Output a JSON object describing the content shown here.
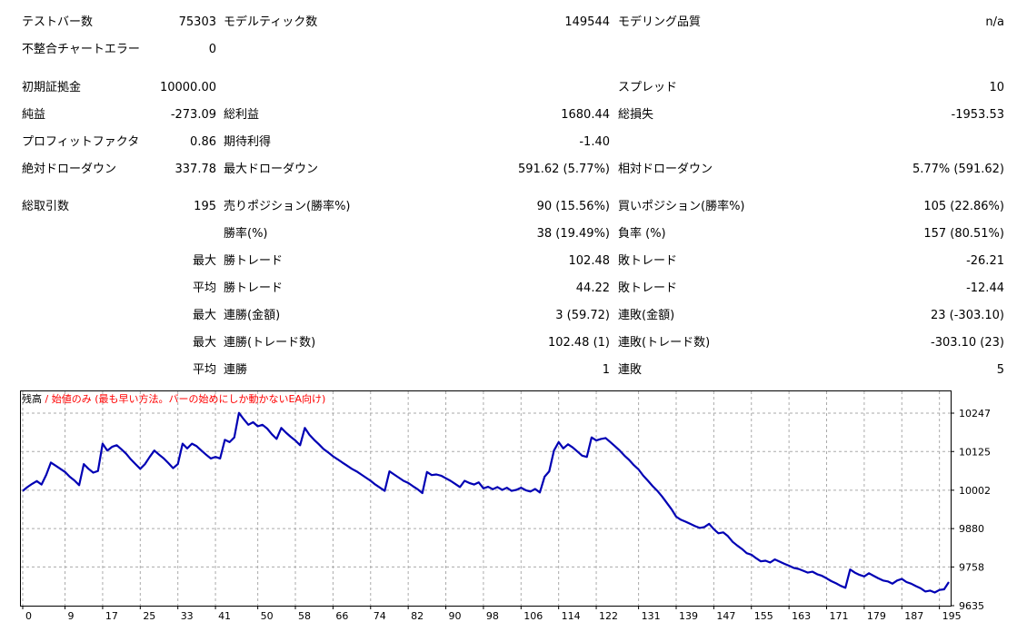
{
  "report": {
    "bars_tested_label": "テストバー数",
    "bars_tested": "75303",
    "ticks_modelled_label": "モデルティック数",
    "ticks_modelled": "149544",
    "modelling_quality_label": "モデリング品質",
    "modelling_quality": "n/a",
    "mismatched_errors_label": "不整合チャートエラー",
    "mismatched_errors": "0",
    "initial_deposit_label": "初期証拠金",
    "initial_deposit": "10000.00",
    "spread_label": "スプレッド",
    "spread": "10",
    "net_profit_label": "純益",
    "net_profit": "-273.09",
    "gross_profit_label": "総利益",
    "gross_profit": "1680.44",
    "gross_loss_label": "総損失",
    "gross_loss": "-1953.53",
    "profit_factor_label": "プロフィットファクタ",
    "profit_factor": "0.86",
    "expected_payoff_label": "期待利得",
    "expected_payoff": "-1.40",
    "abs_drawdown_label": "絶対ドローダウン",
    "abs_drawdown": "337.78",
    "max_drawdown_label": "最大ドローダウン",
    "max_drawdown": "591.62 (5.77%)",
    "rel_drawdown_label": "相対ドローダウン",
    "rel_drawdown": "5.77% (591.62)",
    "total_trades_label": "総取引数",
    "total_trades": "195",
    "short_positions_label": "売りポジション(勝率%)",
    "short_positions": "90 (15.56%)",
    "long_positions_label": "買いポジション(勝率%)",
    "long_positions": "105 (22.86%)",
    "win_rate_label": "勝率(%)",
    "win_rate": "38 (19.49%)",
    "loss_rate_label": "負率 (%)",
    "loss_rate": "157 (80.51%)",
    "max_label_1": "最大",
    "largest_win_label": "勝トレード",
    "largest_win": "102.48",
    "largest_loss_label": "敗トレード",
    "largest_loss": "-26.21",
    "avg_label_1": "平均",
    "avg_win_label": "勝トレード",
    "avg_win": "44.22",
    "avg_loss_label": "敗トレード",
    "avg_loss": "-12.44",
    "max_label_2": "最大",
    "max_consec_wins_label": "連勝(金額)",
    "max_consec_wins": "3 (59.72)",
    "max_consec_losses_label": "連敗(金額)",
    "max_consec_losses": "23 (-303.10)",
    "max_label_3": "最大",
    "max_consec_profit_label": "連勝(トレード数)",
    "max_consec_profit": "102.48 (1)",
    "max_consec_loss_label": "連敗(トレード数)",
    "max_consec_loss": "-303.10 (23)",
    "avg_label_2": "平均",
    "avg_consec_wins_label": "連勝",
    "avg_consec_wins": "1",
    "avg_consec_losses_label": "連敗",
    "avg_consec_losses": "5"
  },
  "chart_header": {
    "series_label": "残高",
    "separator": " / ",
    "note": "始値のみ (最も早い方法。バーの始めにしか動かないEA向け)"
  },
  "chart_data": {
    "type": "line",
    "series": [
      {
        "name": "残高",
        "color": "#0000b4"
      }
    ],
    "x_ticks": [
      "0",
      "9",
      "17",
      "25",
      "33",
      "41",
      "50",
      "58",
      "66",
      "74",
      "82",
      "90",
      "98",
      "106",
      "114",
      "122",
      "131",
      "139",
      "147",
      "155",
      "163",
      "171",
      "179",
      "187",
      "195"
    ],
    "y_ticks": [
      "10247",
      "10125",
      "10002",
      "9880",
      "9758",
      "9635"
    ],
    "ylim": [
      9635,
      10247
    ],
    "xlim": [
      0,
      197
    ],
    "grid": true,
    "points": [
      [
        0,
        10000
      ],
      [
        1,
        10012
      ],
      [
        2,
        10022
      ],
      [
        3,
        10031
      ],
      [
        4,
        10020
      ],
      [
        5,
        10051
      ],
      [
        6,
        10090
      ],
      [
        7,
        10080
      ],
      [
        8,
        10070
      ],
      [
        9,
        10060
      ],
      [
        10,
        10045
      ],
      [
        11,
        10033
      ],
      [
        12,
        10018
      ],
      [
        13,
        10085
      ],
      [
        14,
        10070
      ],
      [
        15,
        10058
      ],
      [
        16,
        10063
      ],
      [
        17,
        10150
      ],
      [
        18,
        10128
      ],
      [
        19,
        10140
      ],
      [
        20,
        10145
      ],
      [
        21,
        10132
      ],
      [
        22,
        10118
      ],
      [
        23,
        10100
      ],
      [
        24,
        10085
      ],
      [
        25,
        10070
      ],
      [
        26,
        10085
      ],
      [
        27,
        10108
      ],
      [
        28,
        10128
      ],
      [
        29,
        10115
      ],
      [
        30,
        10103
      ],
      [
        31,
        10088
      ],
      [
        32,
        10072
      ],
      [
        33,
        10085
      ],
      [
        34,
        10150
      ],
      [
        35,
        10135
      ],
      [
        36,
        10150
      ],
      [
        37,
        10142
      ],
      [
        38,
        10128
      ],
      [
        39,
        10115
      ],
      [
        40,
        10103
      ],
      [
        41,
        10108
      ],
      [
        42,
        10103
      ],
      [
        43,
        10162
      ],
      [
        44,
        10155
      ],
      [
        45,
        10170
      ],
      [
        46,
        10248
      ],
      [
        47,
        10228
      ],
      [
        48,
        10210
      ],
      [
        49,
        10218
      ],
      [
        50,
        10205
      ],
      [
        51,
        10210
      ],
      [
        52,
        10198
      ],
      [
        53,
        10180
      ],
      [
        54,
        10165
      ],
      [
        55,
        10200
      ],
      [
        56,
        10185
      ],
      [
        57,
        10172
      ],
      [
        58,
        10160
      ],
      [
        59,
        10145
      ],
      [
        60,
        10200
      ],
      [
        61,
        10178
      ],
      [
        62,
        10162
      ],
      [
        63,
        10148
      ],
      [
        64,
        10133
      ],
      [
        65,
        10122
      ],
      [
        66,
        10110
      ],
      [
        67,
        10100
      ],
      [
        68,
        10090
      ],
      [
        69,
        10080
      ],
      [
        70,
        10070
      ],
      [
        71,
        10062
      ],
      [
        72,
        10052
      ],
      [
        73,
        10042
      ],
      [
        74,
        10032
      ],
      [
        75,
        10020
      ],
      [
        76,
        10010
      ],
      [
        77,
        10000
      ],
      [
        78,
        10062
      ],
      [
        79,
        10052
      ],
      [
        80,
        10042
      ],
      [
        81,
        10032
      ],
      [
        82,
        10025
      ],
      [
        83,
        10015
      ],
      [
        84,
        10005
      ],
      [
        85,
        9993
      ],
      [
        86,
        10060
      ],
      [
        87,
        10050
      ],
      [
        88,
        10052
      ],
      [
        89,
        10048
      ],
      [
        90,
        10040
      ],
      [
        91,
        10032
      ],
      [
        92,
        10022
      ],
      [
        93,
        10012
      ],
      [
        94,
        10032
      ],
      [
        95,
        10025
      ],
      [
        96,
        10020
      ],
      [
        97,
        10027
      ],
      [
        98,
        10008
      ],
      [
        99,
        10013
      ],
      [
        100,
        10005
      ],
      [
        101,
        10012
      ],
      [
        102,
        10003
      ],
      [
        103,
        10010
      ],
      [
        104,
        10000
      ],
      [
        105,
        10003
      ],
      [
        106,
        10010
      ],
      [
        107,
        10002
      ],
      [
        108,
        9998
      ],
      [
        109,
        10006
      ],
      [
        110,
        9995
      ],
      [
        111,
        10045
      ],
      [
        112,
        10062
      ],
      [
        113,
        10128
      ],
      [
        114,
        10155
      ],
      [
        115,
        10135
      ],
      [
        116,
        10148
      ],
      [
        117,
        10138
      ],
      [
        118,
        10125
      ],
      [
        119,
        10112
      ],
      [
        120,
        10108
      ],
      [
        121,
        10170
      ],
      [
        122,
        10160
      ],
      [
        123,
        10165
      ],
      [
        124,
        10168
      ],
      [
        125,
        10155
      ],
      [
        126,
        10142
      ],
      [
        127,
        10128
      ],
      [
        128,
        10112
      ],
      [
        129,
        10098
      ],
      [
        130,
        10082
      ],
      [
        131,
        10068
      ],
      [
        132,
        10048
      ],
      [
        133,
        10032
      ],
      [
        134,
        10015
      ],
      [
        135,
        10000
      ],
      [
        136,
        9982
      ],
      [
        137,
        9962
      ],
      [
        138,
        9942
      ],
      [
        139,
        9918
      ],
      [
        140,
        9908
      ],
      [
        141,
        9902
      ],
      [
        142,
        9895
      ],
      [
        143,
        9888
      ],
      [
        144,
        9882
      ],
      [
        145,
        9885
      ],
      [
        146,
        9895
      ],
      [
        147,
        9878
      ],
      [
        148,
        9865
      ],
      [
        149,
        9868
      ],
      [
        150,
        9856
      ],
      [
        151,
        9838
      ],
      [
        152,
        9826
      ],
      [
        153,
        9815
      ],
      [
        154,
        9802
      ],
      [
        155,
        9797
      ],
      [
        156,
        9786
      ],
      [
        157,
        9776
      ],
      [
        158,
        9778
      ],
      [
        159,
        9772
      ],
      [
        160,
        9782
      ],
      [
        161,
        9775
      ],
      [
        162,
        9768
      ],
      [
        163,
        9762
      ],
      [
        164,
        9755
      ],
      [
        165,
        9752
      ],
      [
        166,
        9746
      ],
      [
        167,
        9740
      ],
      [
        168,
        9743
      ],
      [
        169,
        9735
      ],
      [
        170,
        9730
      ],
      [
        171,
        9722
      ],
      [
        172,
        9713
      ],
      [
        173,
        9706
      ],
      [
        174,
        9698
      ],
      [
        175,
        9692
      ],
      [
        176,
        9750
      ],
      [
        177,
        9740
      ],
      [
        178,
        9733
      ],
      [
        179,
        9728
      ],
      [
        180,
        9738
      ],
      [
        181,
        9730
      ],
      [
        182,
        9722
      ],
      [
        183,
        9715
      ],
      [
        184,
        9712
      ],
      [
        185,
        9705
      ],
      [
        186,
        9715
      ],
      [
        187,
        9720
      ],
      [
        188,
        9710
      ],
      [
        189,
        9705
      ],
      [
        190,
        9697
      ],
      [
        191,
        9690
      ],
      [
        192,
        9680
      ],
      [
        193,
        9683
      ],
      [
        194,
        9677
      ],
      [
        195,
        9685
      ],
      [
        196,
        9687
      ],
      [
        197,
        9710
      ]
    ]
  }
}
